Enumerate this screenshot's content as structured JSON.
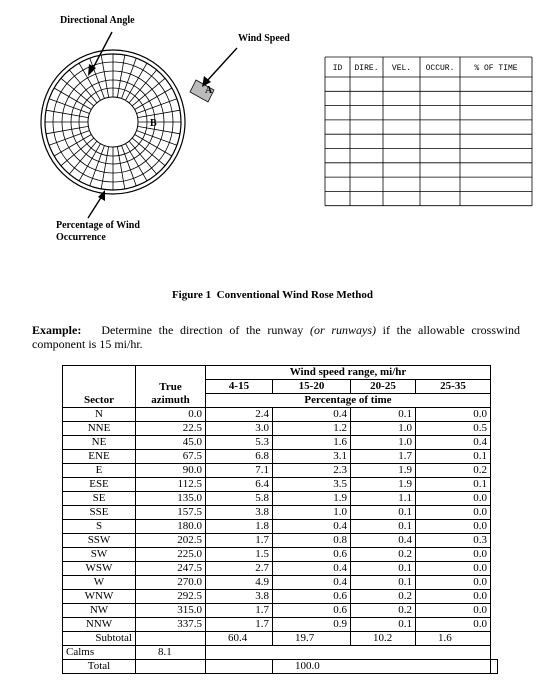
{
  "figure": {
    "directional_angle": "Directional Angle",
    "wind_speed": "Wind Speed",
    "segment_label": "A",
    "center_label": "B",
    "occurrence_label": [
      "Percentage of Wind",
      "Occurrence"
    ],
    "form_headers": [
      "ID",
      "DIRE.",
      "VEL.",
      "OCCUR.",
      "% OF TIME"
    ],
    "caption": "Figure 1  Conventional Wind Rose Method"
  },
  "example": {
    "label": "Example:",
    "text_before": "Determine the direction of the runway",
    "text_italic": "(or runways)",
    "text_after": "if the allowable crosswind component is 15 mi/hr."
  },
  "table": {
    "headers": {
      "sector": "Sector",
      "azimuth": "True azimuth",
      "speed_range": "Wind speed range, mi/hr",
      "ranges": [
        "4-15",
        "15-20",
        "20-25",
        "25-35"
      ],
      "percentage": "Percentage of time"
    },
    "rows": [
      [
        "N",
        "0.0",
        "2.4",
        "0.4",
        "0.1",
        "0.0"
      ],
      [
        "NNE",
        "22.5",
        "3.0",
        "1.2",
        "1.0",
        "0.5"
      ],
      [
        "NE",
        "45.0",
        "5.3",
        "1.6",
        "1.0",
        "0.4"
      ],
      [
        "ENE",
        "67.5",
        "6.8",
        "3.1",
        "1.7",
        "0.1"
      ],
      [
        "E",
        "90.0",
        "7.1",
        "2.3",
        "1.9",
        "0.2"
      ],
      [
        "ESE",
        "112.5",
        "6.4",
        "3.5",
        "1.9",
        "0.1"
      ],
      [
        "SE",
        "135.0",
        "5.8",
        "1.9",
        "1.1",
        "0.0"
      ],
      [
        "SSE",
        "157.5",
        "3.8",
        "1.0",
        "0.1",
        "0.0"
      ],
      [
        "S",
        "180.0",
        "1.8",
        "0.4",
        "0.1",
        "0.0"
      ],
      [
        "SSW",
        "202.5",
        "1.7",
        "0.8",
        "0.4",
        "0.3"
      ],
      [
        "SW",
        "225.0",
        "1.5",
        "0.6",
        "0.2",
        "0.0"
      ],
      [
        "WSW",
        "247.5",
        "2.7",
        "0.4",
        "0.1",
        "0.0"
      ],
      [
        "W",
        "270.0",
        "4.9",
        "0.4",
        "0.1",
        "0.0"
      ],
      [
        "WNW",
        "292.5",
        "3.8",
        "0.6",
        "0.2",
        "0.0"
      ],
      [
        "NW",
        "315.0",
        "1.7",
        "0.6",
        "0.2",
        "0.0"
      ],
      [
        "NNW",
        "337.5",
        "1.7",
        "0.9",
        "0.1",
        "0.0"
      ]
    ],
    "subtotal": {
      "label": "Subtotal",
      "values": [
        "60.4",
        "19.7",
        "10.2",
        "1.6"
      ]
    },
    "calms": {
      "label": "Calms",
      "value": "8.1"
    },
    "total": {
      "label": "Total",
      "value": "100.0"
    }
  }
}
